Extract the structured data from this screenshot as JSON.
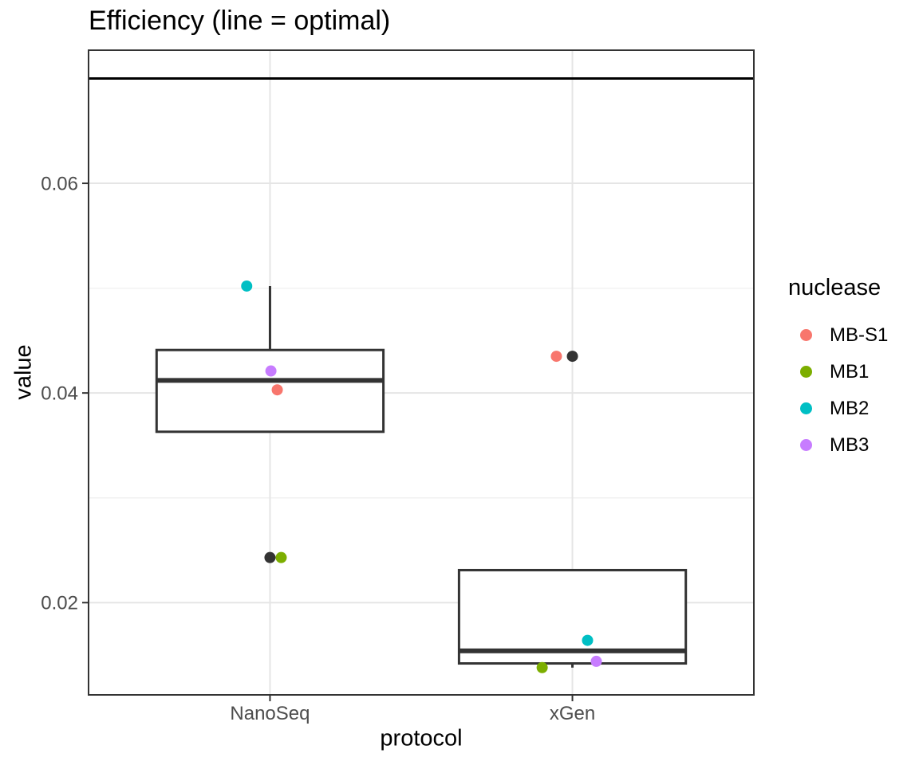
{
  "chart_data": {
    "type": "boxplot",
    "title": "Efficiency (line = optimal)",
    "xlabel": "protocol",
    "ylabel": "value",
    "categories": [
      "NanoSeq",
      "xGen"
    ],
    "y_ticks": [
      {
        "value": 0.02,
        "label": "0.02"
      },
      {
        "value": 0.04,
        "label": "0.04"
      },
      {
        "value": 0.06,
        "label": "0.06"
      }
    ],
    "y_minor_gridlines": [
      0.03,
      0.05
    ],
    "ylim": [
      0.0112,
      0.0727
    ],
    "optimal_line_value": 0.07,
    "grid": true,
    "legend_position": "right",
    "legend": {
      "title": "nuclease",
      "entries": [
        {
          "label": "MB-S1",
          "color": "#F8766D"
        },
        {
          "label": "MB1",
          "color": "#7CAE00"
        },
        {
          "label": "MB2",
          "color": "#00BFC4"
        },
        {
          "label": "MB3",
          "color": "#C77CFF"
        }
      ]
    },
    "boxplots": [
      {
        "category": "NanoSeq",
        "q1": 0.0363,
        "median": 0.0412,
        "q3": 0.0441,
        "whisker_low": 0.0403,
        "whisker_high": 0.0502,
        "outliers": [
          0.0243
        ]
      },
      {
        "category": "xGen",
        "q1": 0.0142,
        "median": 0.0154,
        "q3": 0.0231,
        "whisker_low": 0.0138,
        "whisker_high": 0.0164,
        "outliers": [
          0.0435
        ]
      }
    ],
    "points": [
      {
        "category": "NanoSeq",
        "nuclease": "MB2",
        "value": 0.0502,
        "offset": -0.077
      },
      {
        "category": "NanoSeq",
        "nuclease": "MB3",
        "value": 0.0421,
        "offset": 0.003
      },
      {
        "category": "NanoSeq",
        "nuclease": "MB-S1",
        "value": 0.0403,
        "offset": 0.024
      },
      {
        "category": "NanoSeq",
        "nuclease": "MB1",
        "value": 0.0243,
        "offset": 0.037
      },
      {
        "category": "xGen",
        "nuclease": "MB-S1",
        "value": 0.0435,
        "offset": -0.053
      },
      {
        "category": "xGen",
        "nuclease": "MB2",
        "value": 0.0164,
        "offset": 0.05
      },
      {
        "category": "xGen",
        "nuclease": "MB3",
        "value": 0.0144,
        "offset": 0.079
      },
      {
        "category": "xGen",
        "nuclease": "MB1",
        "value": 0.0138,
        "offset": -0.1
      }
    ],
    "colors": {
      "background": "#FFFFFF",
      "panel_border": "#333333",
      "grid_major": "#E5E5E5",
      "grid_minor": "#F2F2F2",
      "box_outline": "#333333",
      "box_fill": "#FFFFFF",
      "outlier": "#333333",
      "optimal_line": "#000000",
      "tick_mark": "#333333",
      "tick_label": "#4D4D4D",
      "text": "#000000"
    }
  }
}
